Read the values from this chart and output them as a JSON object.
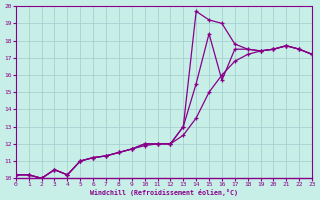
{
  "xlabel": "Windchill (Refroidissement éolien,°C)",
  "bg_color": "#c8eee8",
  "grid_color": "#a0cccc",
  "line_color": "#880088",
  "xmin": 0,
  "xmax": 23,
  "ymin": 10,
  "ymax": 20,
  "series": [
    [
      10.2,
      10.2,
      10.0,
      10.5,
      10.2,
      11.0,
      11.2,
      11.3,
      11.5,
      11.7,
      11.9,
      12.0,
      12.0,
      13.0,
      19.7,
      19.2,
      19.0,
      17.8,
      17.5,
      17.4,
      17.5,
      17.7,
      17.5,
      17.2
    ],
    [
      10.2,
      10.2,
      10.0,
      10.5,
      10.2,
      11.0,
      11.2,
      11.3,
      11.5,
      11.7,
      12.0,
      12.0,
      12.0,
      13.0,
      15.5,
      18.4,
      15.7,
      17.5,
      17.5,
      17.4,
      17.5,
      17.7,
      17.5,
      17.2
    ],
    [
      10.2,
      10.2,
      10.0,
      10.5,
      10.2,
      11.0,
      11.2,
      11.3,
      11.5,
      11.7,
      12.0,
      12.0,
      12.0,
      12.5,
      13.5,
      15.0,
      16.0,
      16.8,
      17.2,
      17.4,
      17.5,
      17.7,
      17.5,
      17.2
    ]
  ]
}
